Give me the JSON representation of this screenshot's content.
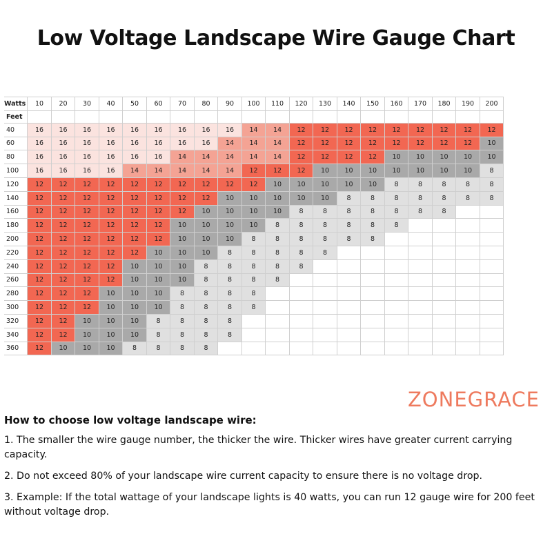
{
  "title": "Low Voltage Landscape Wire Gauge Chart",
  "brand": "ZONEGRACE",
  "colors": {
    "g12": "#f26752",
    "g14": "#f4a394",
    "g16": "#fbe3df",
    "g10": "#a9a9a9",
    "g8": "#e0e0e0",
    "brand": "#ee7a5e"
  },
  "chart_data": {
    "type": "table",
    "title": "Low Voltage Landscape Wire Gauge Chart",
    "column_header": "Watts",
    "row_header": "Feet",
    "watts": [
      10,
      20,
      30,
      40,
      50,
      60,
      70,
      80,
      90,
      100,
      110,
      120,
      130,
      140,
      150,
      160,
      170,
      180,
      190,
      200
    ],
    "feet": [
      40,
      60,
      80,
      100,
      120,
      140,
      160,
      180,
      200,
      220,
      240,
      260,
      280,
      300,
      320,
      340,
      360
    ],
    "gauge": [
      [
        16,
        16,
        16,
        16,
        16,
        16,
        16,
        16,
        16,
        14,
        14,
        12,
        12,
        12,
        12,
        12,
        12,
        12,
        12,
        12
      ],
      [
        16,
        16,
        16,
        16,
        16,
        16,
        16,
        16,
        14,
        14,
        14,
        12,
        12,
        12,
        12,
        12,
        12,
        12,
        12,
        10
      ],
      [
        16,
        16,
        16,
        16,
        16,
        16,
        14,
        14,
        14,
        14,
        14,
        12,
        12,
        12,
        12,
        10,
        10,
        10,
        10,
        10
      ],
      [
        16,
        16,
        16,
        16,
        14,
        14,
        14,
        14,
        14,
        12,
        12,
        12,
        10,
        10,
        10,
        10,
        10,
        10,
        10,
        8
      ],
      [
        12,
        12,
        12,
        12,
        12,
        12,
        12,
        12,
        12,
        12,
        10,
        10,
        10,
        10,
        10,
        8,
        8,
        8,
        8,
        8
      ],
      [
        12,
        12,
        12,
        12,
        12,
        12,
        12,
        12,
        10,
        10,
        10,
        10,
        10,
        8,
        8,
        8,
        8,
        8,
        8,
        8
      ],
      [
        12,
        12,
        12,
        12,
        12,
        12,
        12,
        10,
        10,
        10,
        10,
        8,
        8,
        8,
        8,
        8,
        8,
        8,
        null,
        null
      ],
      [
        12,
        12,
        12,
        12,
        12,
        12,
        10,
        10,
        10,
        10,
        8,
        8,
        8,
        8,
        8,
        8,
        null,
        null,
        null,
        null
      ],
      [
        12,
        12,
        12,
        12,
        12,
        12,
        10,
        10,
        10,
        8,
        8,
        8,
        8,
        8,
        8,
        null,
        null,
        null,
        null,
        null
      ],
      [
        12,
        12,
        12,
        12,
        12,
        10,
        10,
        10,
        8,
        8,
        8,
        8,
        8,
        null,
        null,
        null,
        null,
        null,
        null,
        null
      ],
      [
        12,
        12,
        12,
        12,
        10,
        10,
        10,
        8,
        8,
        8,
        8,
        8,
        null,
        null,
        null,
        null,
        null,
        null,
        null,
        null
      ],
      [
        12,
        12,
        12,
        12,
        10,
        10,
        10,
        8,
        8,
        8,
        8,
        null,
        null,
        null,
        null,
        null,
        null,
        null,
        null,
        null
      ],
      [
        12,
        12,
        12,
        10,
        10,
        10,
        8,
        8,
        8,
        8,
        null,
        null,
        null,
        null,
        null,
        null,
        null,
        null,
        null,
        null
      ],
      [
        12,
        12,
        12,
        10,
        10,
        10,
        8,
        8,
        8,
        8,
        null,
        null,
        null,
        null,
        null,
        null,
        null,
        null,
        null,
        null
      ],
      [
        12,
        12,
        10,
        10,
        10,
        8,
        8,
        8,
        8,
        null,
        null,
        null,
        null,
        null,
        null,
        null,
        null,
        null,
        null,
        null
      ],
      [
        12,
        12,
        10,
        10,
        10,
        8,
        8,
        8,
        8,
        null,
        null,
        null,
        null,
        null,
        null,
        null,
        null,
        null,
        null,
        null
      ],
      [
        12,
        10,
        10,
        10,
        8,
        8,
        8,
        8,
        null,
        null,
        null,
        null,
        null,
        null,
        null,
        null,
        null,
        null,
        null,
        null
      ]
    ]
  },
  "howto": {
    "heading": "How to choose low voltage landscape wire:",
    "items": [
      "1. The smaller the wire gauge number, the thicker the wire. Thicker wires have greater current carrying capacity.",
      "2. Do not exceed 80% of your landscape wire current capacity to ensure there is no voltage drop.",
      "3. Example: If the total wattage of your landscape lights is 40 watts, you can run 12 gauge wire for 200 feet without voltage drop."
    ]
  }
}
